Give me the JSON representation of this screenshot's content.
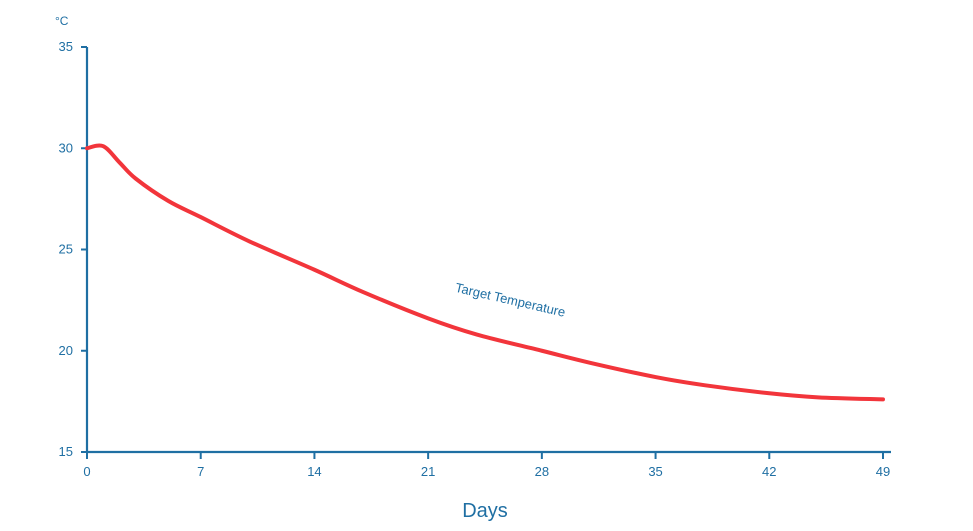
{
  "chart_data": {
    "type": "line",
    "title": "",
    "xlabel": "Days",
    "ylabel": "°C",
    "xlim": [
      0,
      49
    ],
    "ylim": [
      15,
      35
    ],
    "x_ticks": [
      0,
      7,
      14,
      21,
      28,
      35,
      42,
      49
    ],
    "y_ticks": [
      15,
      20,
      25,
      30,
      35
    ],
    "grid": false,
    "legend": "none",
    "series": [
      {
        "name": "Target Temperature",
        "color": "#f2353b",
        "x": [
          0,
          1,
          2,
          3,
          5,
          7,
          10,
          14,
          17,
          21,
          24,
          28,
          31,
          35,
          38,
          42,
          45,
          49
        ],
        "y": [
          30.0,
          30.1,
          29.3,
          28.5,
          27.4,
          26.6,
          25.4,
          24.0,
          22.9,
          21.6,
          20.8,
          20.0,
          19.4,
          18.7,
          18.3,
          17.9,
          17.7,
          17.6
        ]
      }
    ],
    "annotations": [
      {
        "text": "Target Temperature",
        "x": 26,
        "y": 22.3
      }
    ]
  }
}
